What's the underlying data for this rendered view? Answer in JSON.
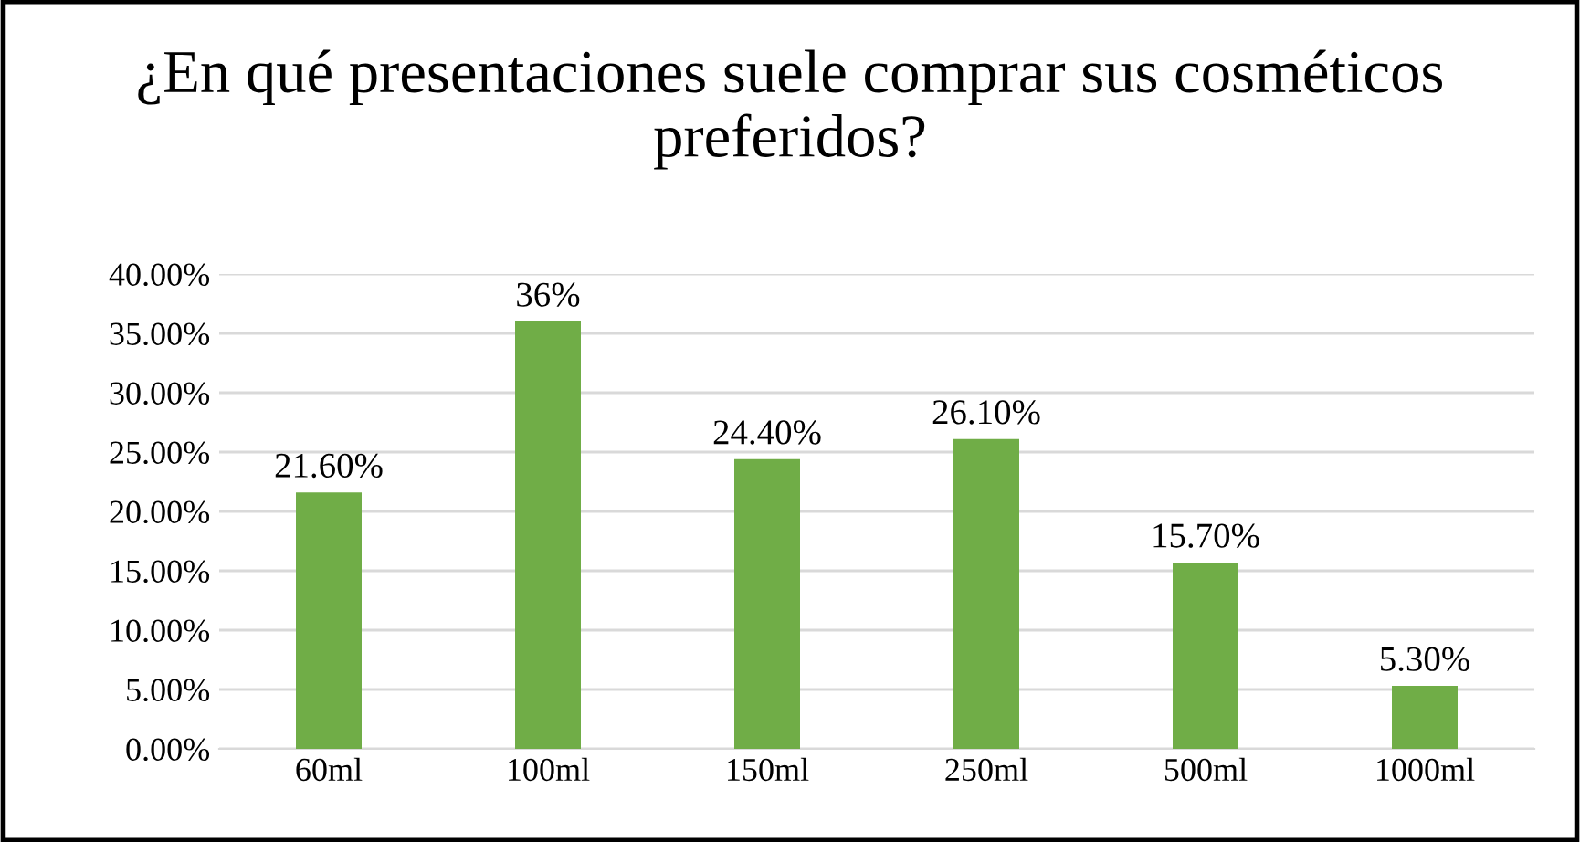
{
  "chart_data": {
    "type": "bar",
    "title": "¿En qué presentaciones suele comprar sus cosméticos preferidos?",
    "categories": [
      "60ml",
      "100ml",
      "150ml",
      "250ml",
      "500ml",
      "1000ml"
    ],
    "values": [
      21.6,
      36,
      24.4,
      26.1,
      15.7,
      5.3
    ],
    "value_labels": [
      "21.60%",
      "36%",
      "24.40%",
      "26.10%",
      "15.70%",
      "5.30%"
    ],
    "color": "#70ad47",
    "ylim": [
      0,
      40
    ],
    "yticks": [
      {
        "value": 0,
        "label": "0.00%"
      },
      {
        "value": 5,
        "label": "5.00%"
      },
      {
        "value": 10,
        "label": "10.00%"
      },
      {
        "value": 15,
        "label": "15.00%"
      },
      {
        "value": 20,
        "label": "20.00%"
      },
      {
        "value": 25,
        "label": "25.00%"
      },
      {
        "value": 30,
        "label": "30.00%"
      },
      {
        "value": 35,
        "label": "35.00%"
      },
      {
        "value": 40,
        "label": "40.00%"
      }
    ],
    "grid": "y",
    "legend": false
  }
}
